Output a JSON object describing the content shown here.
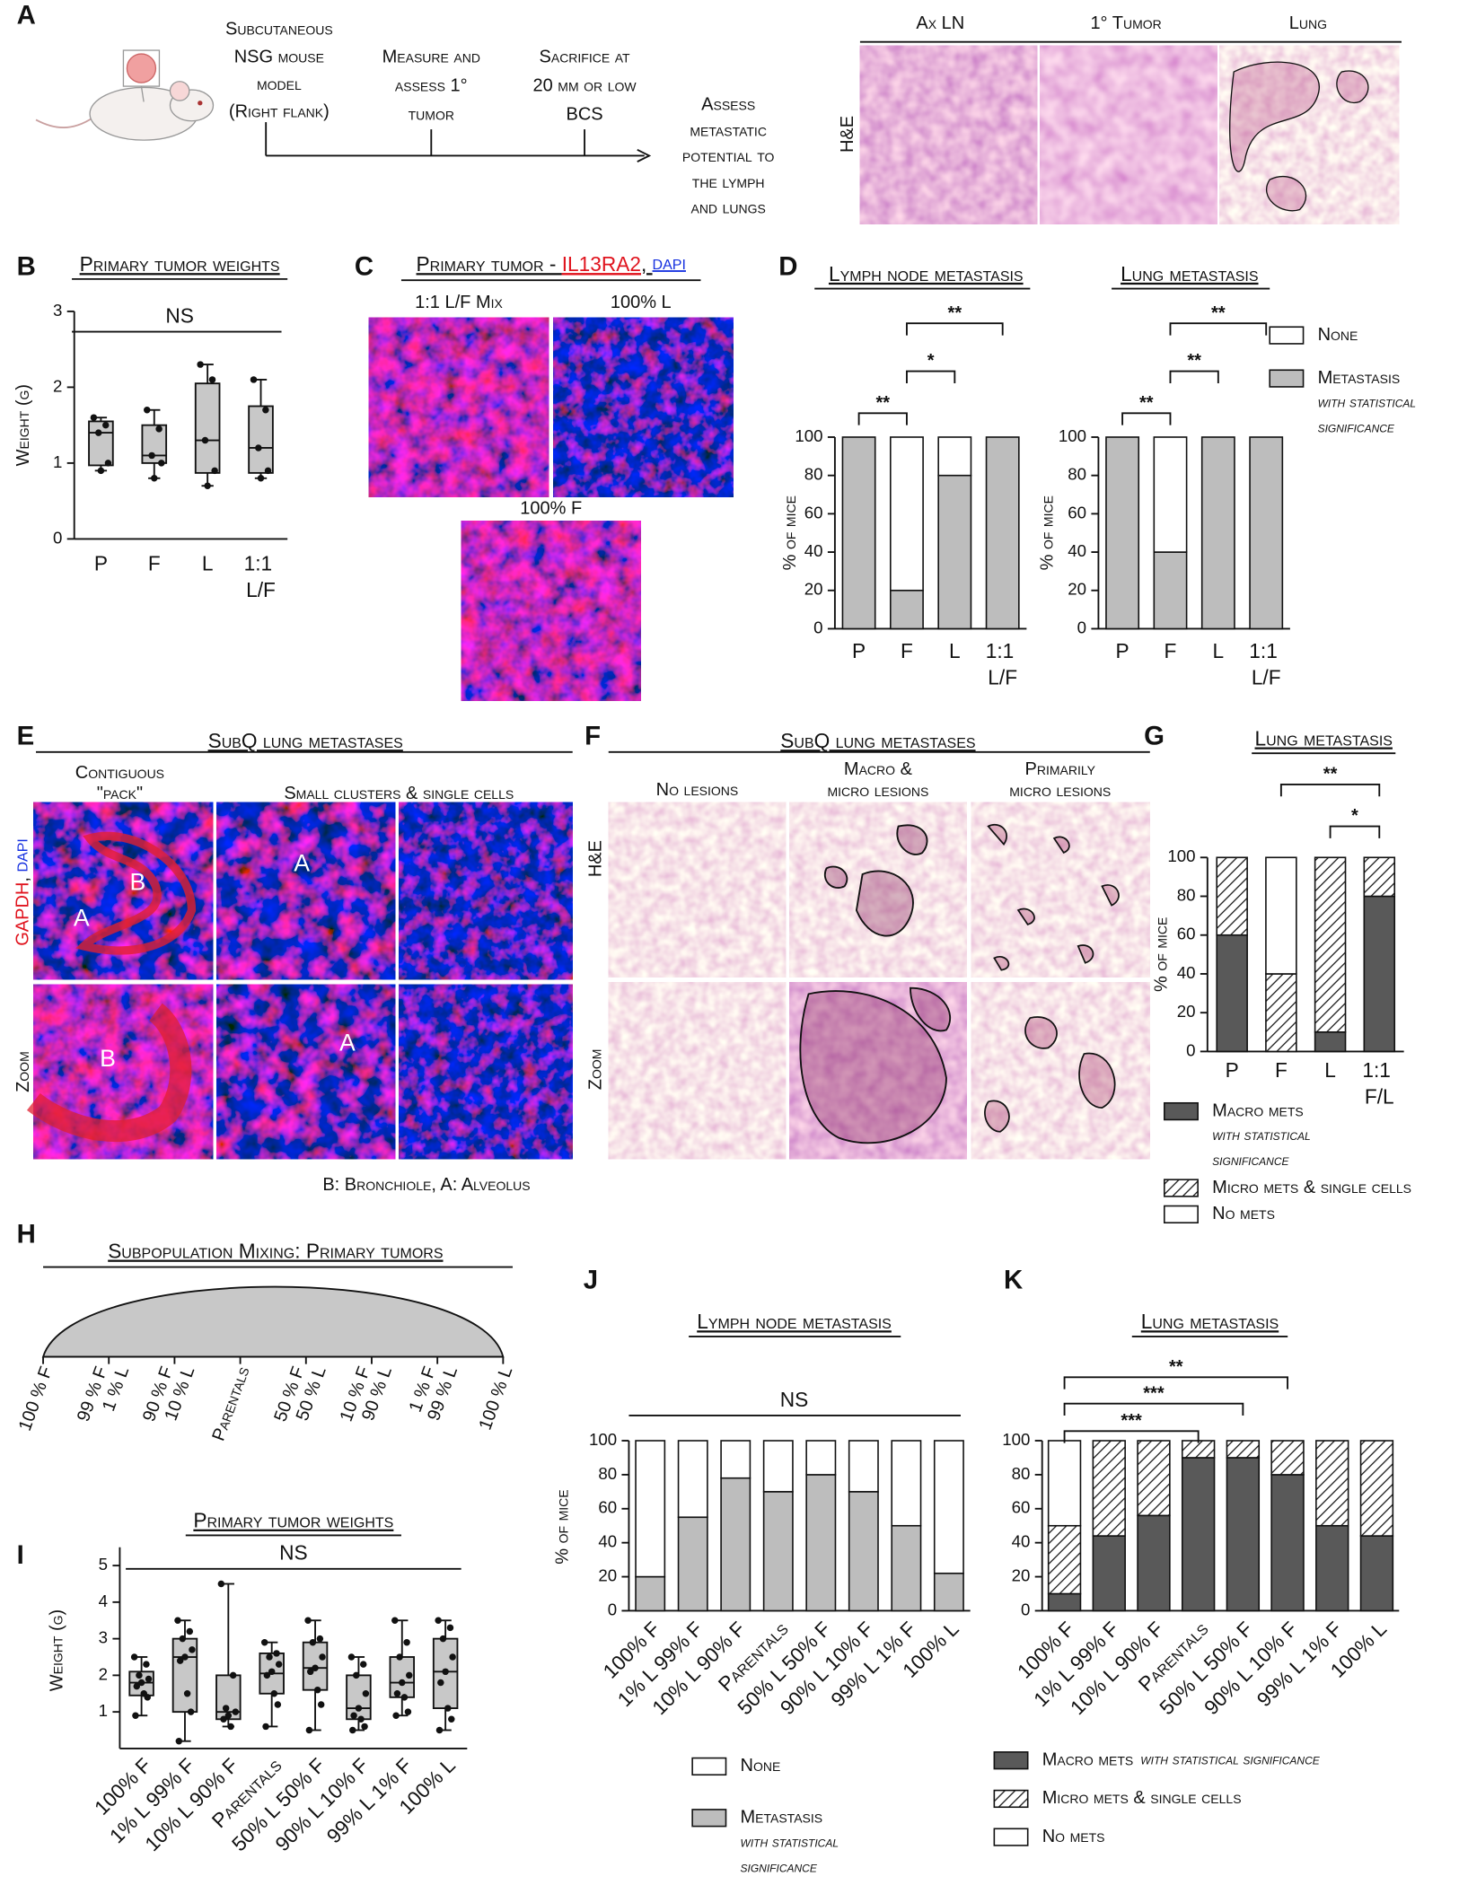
{
  "panel_labels": [
    "A",
    "B",
    "C",
    "D",
    "E",
    "F",
    "G",
    "H",
    "I",
    "J",
    "K"
  ],
  "panel_a": {
    "steps": [
      [
        "Subcutaneous",
        "NSG mouse",
        "model",
        "(Right flank)"
      ],
      [
        "Measure and",
        "assess 1°",
        "tumor"
      ],
      [
        "Sacrifice at",
        "20 mm or low",
        "BCS"
      ],
      [
        "Assess",
        "metastatic",
        "potential to",
        "the lymph",
        "and lungs"
      ]
    ],
    "columns": [
      "Ax LN",
      "1° Tumor",
      "Lung"
    ],
    "row_label": "H&E"
  },
  "panel_c": {
    "title_parts": [
      "Primary tumor - ",
      "IL13RA2",
      ", ",
      "DAPI"
    ],
    "images": [
      "1:1 L/F Mix",
      "100% L",
      "100% F"
    ]
  },
  "panel_e": {
    "title": "SubQ lung metastases",
    "columns": [
      [
        "Contiguous",
        "\"pack\""
      ],
      [
        "Small clusters & single cells"
      ]
    ],
    "row_label_parts": [
      "GAPDH",
      ", ",
      "DAPI"
    ],
    "zoom_label": "Zoom",
    "markers": [
      "A",
      "B",
      "A",
      "B",
      "A"
    ],
    "caption": "B: Bronchiole, A: Alveolus"
  },
  "panel_f": {
    "title": "SubQ lung metastases",
    "columns": [
      [
        "No lesions"
      ],
      [
        "Macro &",
        "micro lesions"
      ],
      [
        "Primarily",
        "micro lesions"
      ]
    ],
    "row_labels": [
      "H&E",
      "Zoom"
    ]
  },
  "panel_h": {
    "title": "Subpopulation Mixing: Primary tumors",
    "labels": [
      [
        "100 % F"
      ],
      [
        "99 % F",
        "1 % L"
      ],
      [
        "90 % F",
        "10 % L"
      ],
      [
        "Parentals"
      ],
      [
        "50 % F",
        "50 % L"
      ],
      [
        "10 % F",
        "90 % L"
      ],
      [
        "1 % F",
        "99 % L"
      ],
      [
        "100 % L"
      ]
    ]
  },
  "chart_data": [
    {
      "type": "box",
      "title": "Primary tumor weights",
      "y_label": "Weight (g)",
      "categories": [
        "P",
        "F",
        "L",
        "1:1 L/F"
      ],
      "color": "#c8c8c8",
      "ylim": [
        0,
        3
      ],
      "yticks": [
        0,
        1,
        2,
        3
      ],
      "annotation": "NS",
      "boxes": [
        {
          "min": 0.9,
          "q1": 0.97,
          "median": 1.4,
          "q3": 1.55,
          "max": 1.6,
          "points": [
            1.6,
            1.5,
            1.4,
            1.0,
            0.9
          ]
        },
        {
          "min": 0.8,
          "q1": 1.0,
          "median": 1.1,
          "q3": 1.5,
          "max": 1.7,
          "points": [
            1.7,
            1.45,
            1.1,
            1.0,
            0.8
          ]
        },
        {
          "min": 0.7,
          "q1": 0.87,
          "median": 1.3,
          "q3": 2.05,
          "max": 2.3,
          "points": [
            2.3,
            2.1,
            1.3,
            0.9,
            0.7
          ]
        },
        {
          "min": 0.8,
          "q1": 0.87,
          "median": 1.2,
          "q3": 1.75,
          "max": 2.1,
          "points": [
            2.1,
            1.7,
            1.2,
            0.9,
            0.8
          ]
        }
      ]
    },
    {
      "type": "stacked_bar",
      "title": "Lymph node metastasis",
      "y_label": "% of mice",
      "categories": [
        "P",
        "F",
        "L",
        "1:1 L/F"
      ],
      "ylim": [
        0,
        100
      ],
      "yticks": [
        0,
        20,
        40,
        60,
        80,
        100
      ],
      "series": [
        {
          "color": "#bdbdbd",
          "values": [
            100,
            20,
            80,
            100
          ]
        },
        {
          "color": "#ffffff",
          "values": [
            0,
            80,
            20,
            0
          ]
        }
      ],
      "brackets": [
        {
          "from": "P",
          "to": "F",
          "label": "**"
        },
        {
          "from": "F",
          "to": "L",
          "label": "*"
        },
        {
          "from": "F",
          "to": "1:1 L/F",
          "label": "**"
        }
      ]
    },
    {
      "type": "stacked_bar",
      "title": "Lung metastasis",
      "y_label": "% of mice",
      "categories": [
        "P",
        "F",
        "L",
        "1:1 L/F"
      ],
      "ylim": [
        0,
        100
      ],
      "yticks": [
        0,
        20,
        40,
        60,
        80,
        100
      ],
      "legend_reversed": true,
      "series": [
        {
          "name": "Metastasis",
          "note": "with statistical significance",
          "color": "#bdbdbd",
          "values": [
            100,
            40,
            100,
            100
          ]
        },
        {
          "name": "None",
          "color": "#ffffff",
          "values": [
            0,
            60,
            0,
            0
          ]
        }
      ],
      "brackets": [
        {
          "from": "P",
          "to": "F",
          "label": "**"
        },
        {
          "from": "F",
          "to": "L",
          "label": "**"
        },
        {
          "from": "F",
          "to": "1:1 L/F",
          "label": "**"
        }
      ]
    },
    {
      "type": "stacked_bar",
      "title": "Lung metastasis",
      "y_label": "% of mice",
      "categories": [
        "P",
        "F",
        "L",
        "1:1 F/L"
      ],
      "ylim": [
        0,
        100
      ],
      "yticks": [
        0,
        20,
        40,
        60,
        80,
        100
      ],
      "series": [
        {
          "name": "Macro mets",
          "note": "with statistical significance",
          "color": "#595959",
          "values": [
            60,
            0,
            10,
            80
          ]
        },
        {
          "name": "Micro mets & single cells",
          "color": "#222222",
          "pattern": "hatch",
          "values": [
            40,
            40,
            90,
            20
          ]
        },
        {
          "name": "No mets",
          "color": "#ffffff",
          "values": [
            0,
            60,
            0,
            0
          ]
        }
      ],
      "brackets": [
        {
          "from": "L",
          "to": "1:1 F/L",
          "label": "*"
        },
        {
          "from": "F",
          "to": "1:1 F/L",
          "label": "**"
        }
      ]
    },
    {
      "type": "box",
      "title": "Primary tumor weights",
      "y_label": "Weight (g)",
      "categories": [
        "100% F",
        "1% L 99% F",
        "10% L 90% F",
        "Parentals",
        "50% L 50% F",
        "90% L 10% F",
        "99% L 1% F",
        "100% L"
      ],
      "color": "#c8c8c8",
      "ylim": [
        0,
        5.5
      ],
      "yticks": [
        1,
        2,
        3,
        4,
        5
      ],
      "annotation": "NS",
      "boxes": [
        {
          "min": 0.9,
          "q1": 1.45,
          "median": 1.8,
          "q3": 2.1,
          "max": 2.5,
          "points": [
            2.5,
            2.3,
            2.0,
            1.9,
            1.8,
            1.7,
            1.5,
            1.4,
            0.9
          ]
        },
        {
          "min": 0.2,
          "q1": 1.0,
          "median": 2.5,
          "q3": 3.0,
          "max": 3.5,
          "points": [
            3.5,
            3.2,
            3.0,
            2.7,
            2.5,
            2.4,
            1.5,
            1.0,
            0.2
          ]
        },
        {
          "min": 0.6,
          "q1": 0.8,
          "median": 1.0,
          "q3": 2.0,
          "max": 4.5,
          "points": [
            4.5,
            2.0,
            1.1,
            1.0,
            0.9,
            0.8,
            0.6
          ]
        },
        {
          "min": 0.6,
          "q1": 1.5,
          "median": 2.05,
          "q3": 2.6,
          "max": 2.9,
          "points": [
            2.9,
            2.6,
            2.5,
            2.3,
            2.1,
            2.0,
            1.5,
            1.2,
            0.6
          ]
        },
        {
          "min": 0.5,
          "q1": 1.6,
          "median": 2.2,
          "q3": 2.9,
          "max": 3.5,
          "points": [
            3.5,
            3.0,
            2.9,
            2.5,
            2.2,
            2.1,
            1.6,
            1.2,
            0.5
          ]
        },
        {
          "min": 0.5,
          "q1": 0.8,
          "median": 1.1,
          "q3": 2.0,
          "max": 2.5,
          "points": [
            2.5,
            2.3,
            2.0,
            1.5,
            1.1,
            0.9,
            0.8,
            0.6,
            0.5
          ]
        },
        {
          "min": 0.9,
          "q1": 1.4,
          "median": 1.8,
          "q3": 2.5,
          "max": 3.5,
          "points": [
            3.5,
            2.9,
            2.5,
            2.0,
            1.8,
            1.5,
            1.4,
            1.0,
            0.9
          ]
        },
        {
          "min": 0.5,
          "q1": 1.1,
          "median": 2.1,
          "q3": 3.0,
          "max": 3.5,
          "points": [
            3.5,
            3.3,
            3.0,
            2.5,
            2.1,
            1.8,
            1.1,
            0.8,
            0.5
          ]
        }
      ]
    },
    {
      "type": "stacked_bar",
      "title": "Lymph node metastasis",
      "y_label": "% of mice",
      "categories": [
        "100% F",
        "1% L 99% F",
        "10% L 90% F",
        "Parentals",
        "50% L 50% F",
        "90% L 10% F",
        "99% L 1% F",
        "100% L"
      ],
      "ylim": [
        0,
        100
      ],
      "yticks": [
        0,
        20,
        40,
        60,
        80,
        100
      ],
      "annotation": "NS",
      "legend_reversed": true,
      "series": [
        {
          "name": "Metastasis",
          "note": "with statistical significance",
          "color": "#bdbdbd",
          "values": [
            20,
            55,
            78,
            70,
            80,
            70,
            50,
            22
          ]
        },
        {
          "name": "None",
          "color": "#ffffff",
          "values": [
            80,
            45,
            22,
            30,
            20,
            30,
            50,
            78
          ]
        }
      ]
    },
    {
      "type": "stacked_bar",
      "title": "Lung metastasis",
      "categories": [
        "100% F",
        "1% L 99% F",
        "10% L 90% F",
        "Parentals",
        "50% L 50% F",
        "90% L 10% F",
        "99% L 1% F",
        "100% L"
      ],
      "ylim": [
        0,
        100
      ],
      "yticks": [
        0,
        20,
        40,
        60,
        80,
        100
      ],
      "series": [
        {
          "name": "Macro mets",
          "note": "with statistical significance",
          "color": "#595959",
          "values": [
            10,
            44,
            56,
            90,
            90,
            80,
            50,
            44
          ]
        },
        {
          "name": "Micro mets & single cells",
          "color": "#222222",
          "pattern": "hatch",
          "values": [
            40,
            56,
            44,
            10,
            10,
            20,
            50,
            56
          ]
        },
        {
          "name": "No mets",
          "color": "#ffffff",
          "values": [
            50,
            0,
            0,
            0,
            0,
            0,
            0,
            0
          ]
        }
      ],
      "brackets": [
        {
          "from": "100% F",
          "to": "Parentals",
          "label": "***"
        },
        {
          "from": "100% F",
          "to": "50% L 50% F",
          "label": "***"
        },
        {
          "from": "100% F",
          "to": "90% L 10% F",
          "label": "**"
        }
      ]
    }
  ]
}
